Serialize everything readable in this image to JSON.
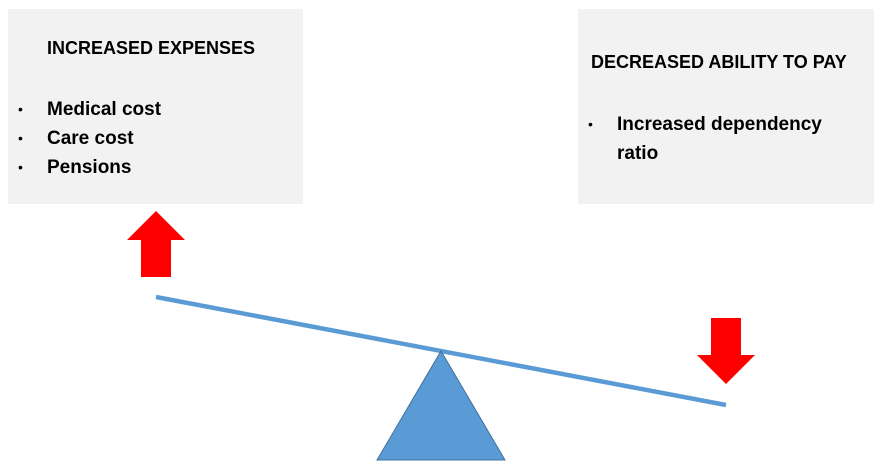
{
  "left_box": {
    "title": "INCREASED EXPENSES",
    "items": [
      "Medical cost",
      "Care cost",
      "Pensions"
    ]
  },
  "right_box": {
    "title": "DECREASED ABILITY TO PAY",
    "items": [
      "Increased dependency ratio"
    ]
  },
  "bullet_glyph": "•",
  "colors": {
    "box_background": "#f2f2f2",
    "arrow": "#ff0000",
    "beam": "#5b9bd5",
    "fulcrum": "#5b9bd5",
    "fulcrum_outline": "#41719c"
  }
}
